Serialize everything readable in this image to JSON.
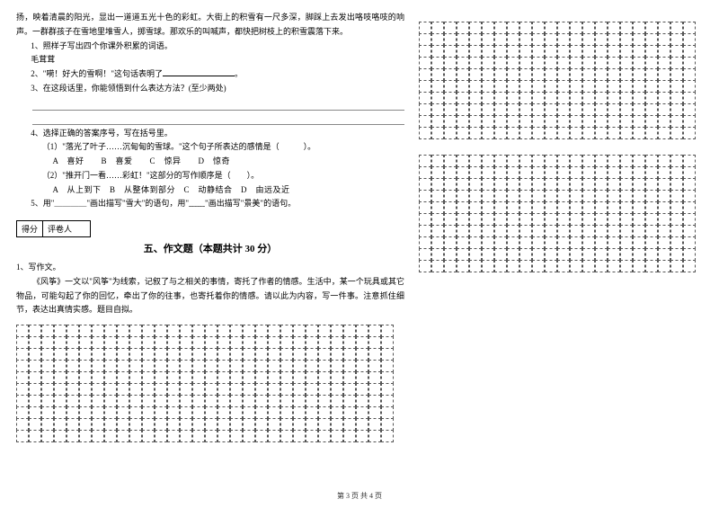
{
  "intro": "扬，映着清晨的阳光，显出一道道五光十色的彩虹。大街上的积雪有一尺多深，脚踩上去发出咯吱咯吱的响声。一群群孩子在雪地里堆雪人，掷雪球。那欢乐的叫喊声，都快把树枝上的积雪震落下来。",
  "q1": "1、照样子写出四个你课外积累的词语。",
  "q1_example": "毛茸茸",
  "q2_a": "2、\"嗬！好大的雪啊！\"这句话表明了",
  "q2_b": "。",
  "q3": "3、在这段话里，你能领悟到什么表达方法？(至少两处)",
  "q4": "4、选择正确的答案序号，写在括号里。",
  "q4_1": "（1）\"落光了叶子……沉甸甸的雪球。\"这个句子所表达的感情是（　　　）。",
  "q4_1_opts": "A　喜好　　B　喜爱　　C　惊异　　D　惊奇",
  "q4_2": "（2）\"推开门一看……彩虹！\"这部分的写作顺序是（　　）。",
  "q4_2_opts": "A　从上到下　B　从整体到部分　C　动静结合　D　由远及近",
  "q5": "5、用\"＿＿＿＿\"画出描写\"雪大\"的语句，用\"﹏﹏\"画出描写\"景美\"的语句。",
  "score_label1": "得分",
  "score_label2": "评卷人",
  "section5": "五、作文题（本题共计 30 分）",
  "essay_q": "1、写作文。",
  "essay_body": "《风筝》一文以\"风筝\"为线索，记叙了与之相关的事情，寄托了作者的情感。生活中，某一个玩具或其它物品，可能勾起了你的回忆，牵出了你的往事，也寄托着你的情感。请以此为内容，写一件事。注意抓住细节，表达出真情实感。题目自拟。",
  "footer": "第 3 页 共 4 页",
  "grid_left": {
    "cols": 30,
    "rows": 10
  },
  "grid_r1": {
    "cols": 22,
    "rows": 10
  },
  "grid_r2": {
    "cols": 22,
    "rows": 10
  },
  "cell_size": 14
}
